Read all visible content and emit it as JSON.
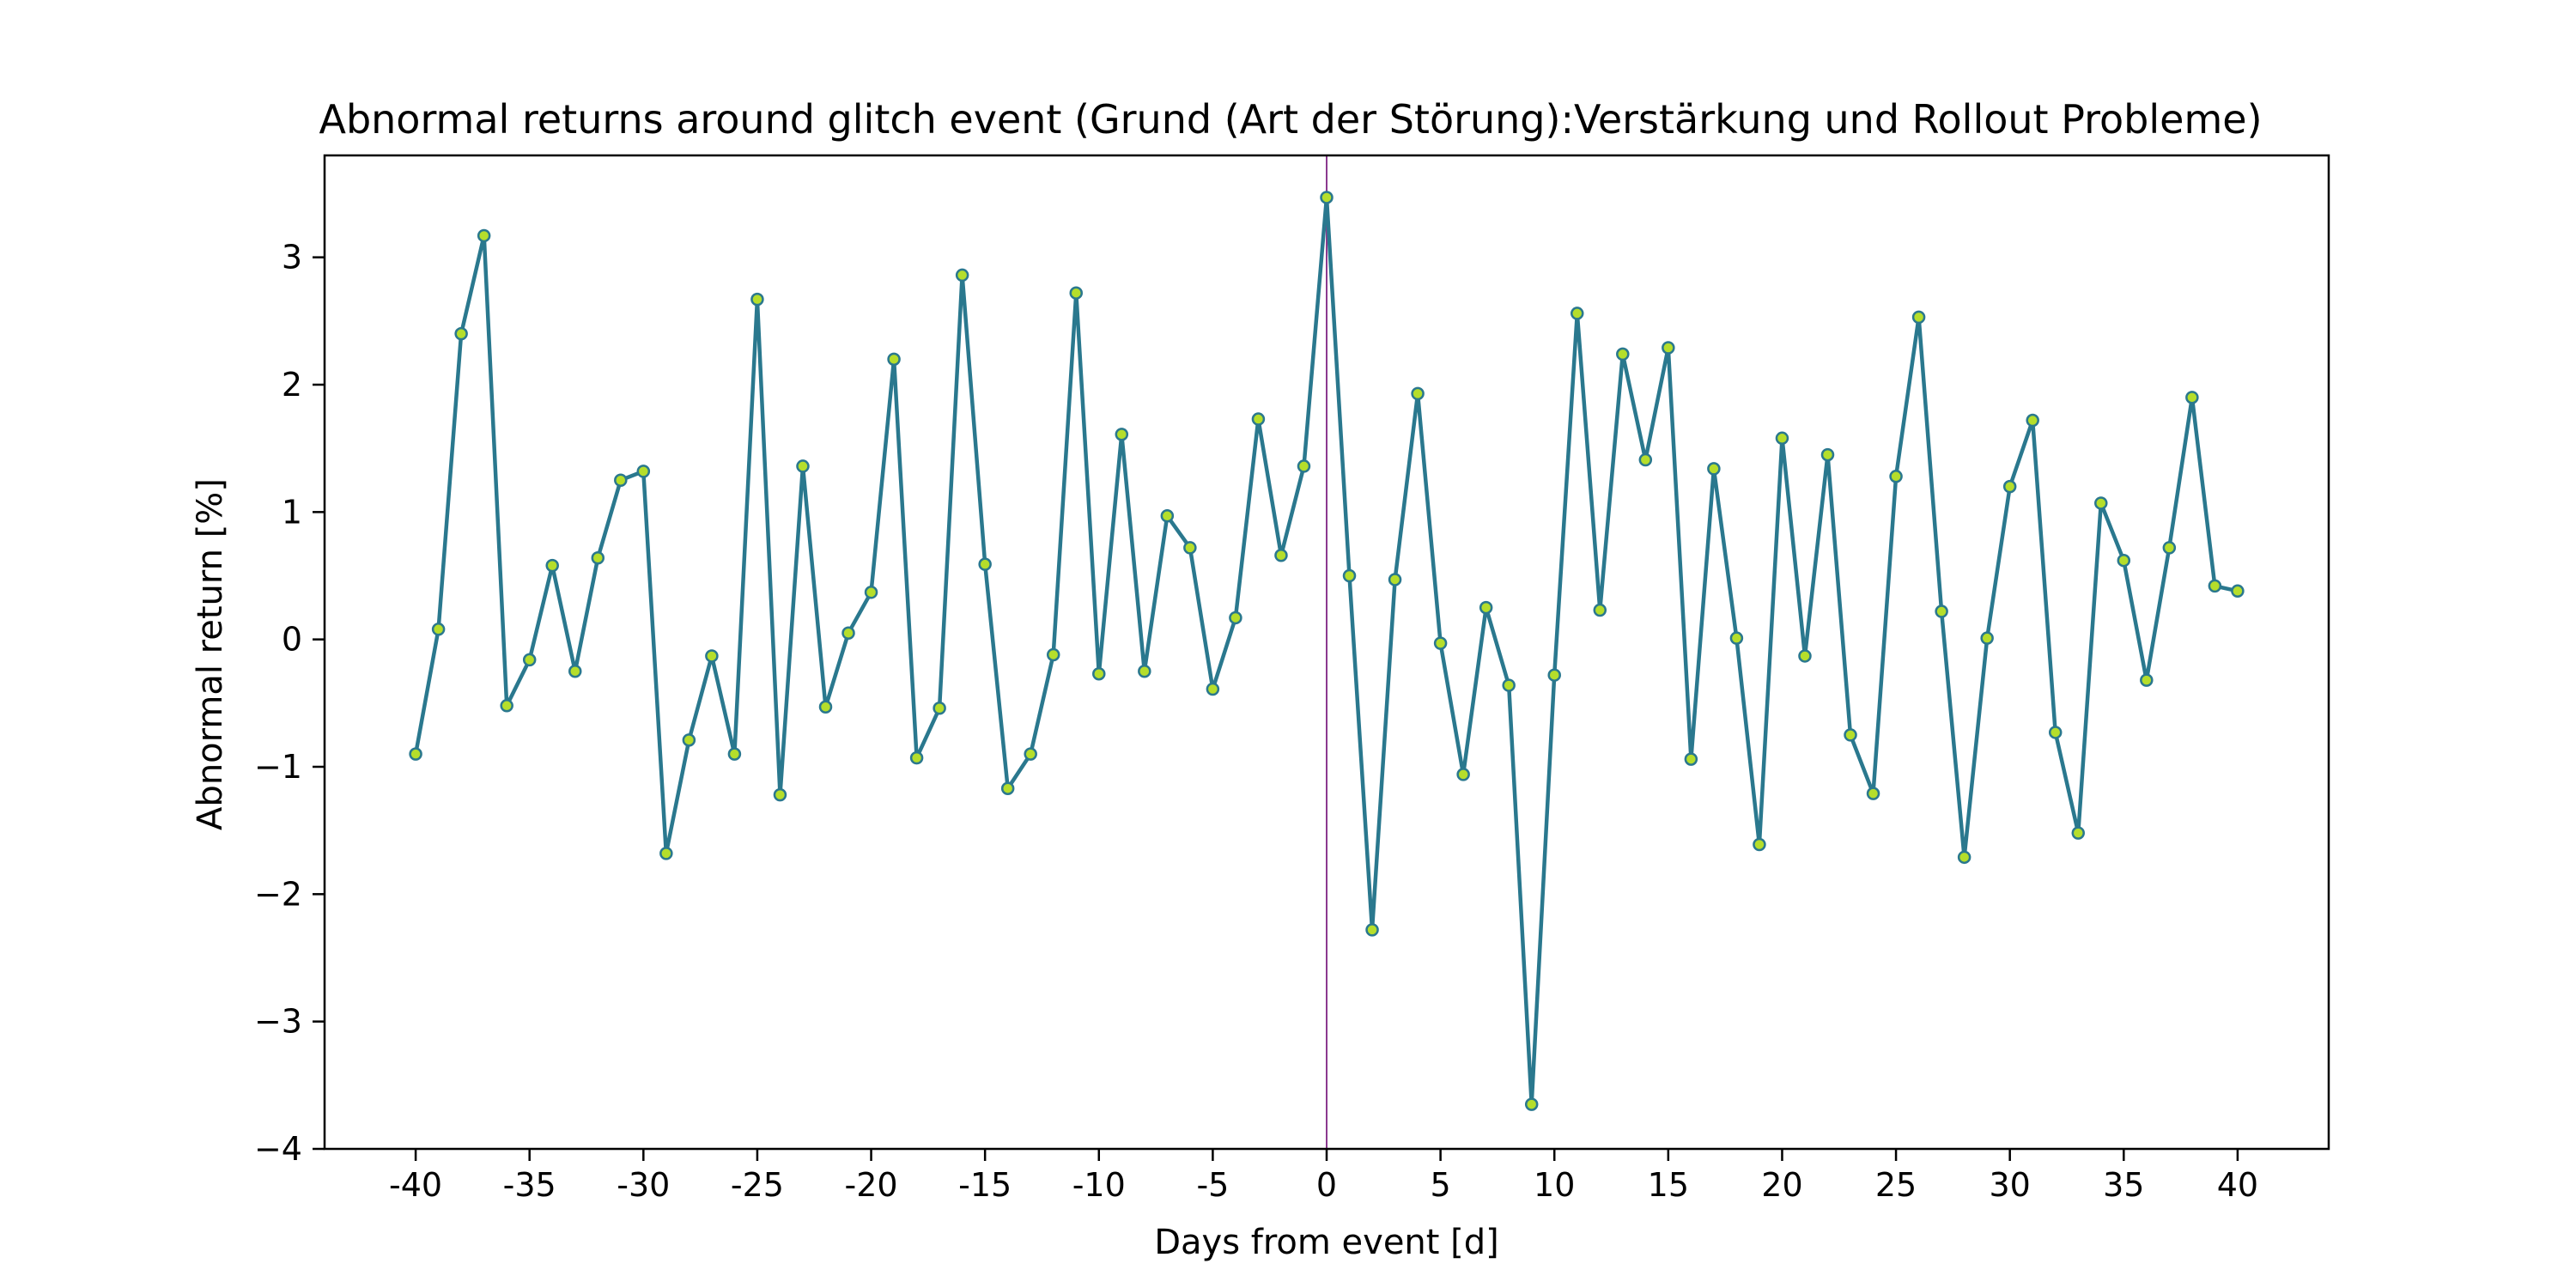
{
  "chart_data": {
    "type": "line",
    "title": "Abnormal returns around glitch event (Grund (Art der Störung):Verstärkung und Rollout Probleme)",
    "xlabel": "Days from event [d]",
    "ylabel": "Abnormal return [%]",
    "xlim": [
      -44,
      44
    ],
    "ylim": [
      -4,
      3.8
    ],
    "xticks": [
      -40,
      -35,
      -30,
      -25,
      -20,
      -15,
      -10,
      -5,
      0,
      5,
      10,
      15,
      20,
      25,
      30,
      35,
      40
    ],
    "xtick_labels": [
      "-40",
      "-35",
      "-30",
      "-25",
      "-20",
      "-15",
      "-10",
      "-5",
      "0",
      "5",
      "10",
      "15",
      "20",
      "25",
      "30",
      "35",
      "40"
    ],
    "yticks": [
      -4,
      -3,
      -2,
      -1,
      0,
      1,
      2,
      3
    ],
    "ytick_labels": [
      "−4",
      "−3",
      "−2",
      "−1",
      "0",
      "1",
      "2",
      "3"
    ],
    "event_line_x": 0,
    "grid": false,
    "colors": {
      "line": "#2a788e",
      "marker_fill": "#b5de2b",
      "marker_edge": "#2a788e",
      "event_line": "#8b3a8f"
    },
    "series": [
      {
        "x": [
          -40,
          -39,
          -38,
          -37,
          -36,
          -35,
          -34,
          -33,
          -32,
          -31,
          -30,
          -29,
          -28,
          -27,
          -26,
          -25,
          -24,
          -23,
          -22,
          -21,
          -20,
          -19,
          -18,
          -17,
          -16,
          -15,
          -14,
          -13,
          -12,
          -11,
          -10,
          -9,
          -8,
          -7,
          -6,
          -5,
          -4,
          -3,
          -2,
          -1,
          0,
          1,
          2,
          3,
          4,
          5,
          6,
          7,
          8,
          9,
          10,
          11,
          12,
          13,
          14,
          15,
          16,
          17,
          18,
          19,
          20,
          21,
          22,
          23,
          24,
          25,
          26,
          27,
          28,
          29,
          30,
          31,
          32,
          33,
          34,
          35,
          36,
          37,
          38,
          39,
          40
        ],
        "values": [
          -0.9,
          0.08,
          2.4,
          3.17,
          -0.52,
          -0.16,
          0.58,
          -0.25,
          0.64,
          1.25,
          1.32,
          -1.68,
          -0.79,
          -0.13,
          -0.9,
          2.67,
          -1.22,
          1.36,
          -0.53,
          0.05,
          0.37,
          2.2,
          -0.93,
          -0.54,
          2.86,
          0.59,
          -1.17,
          -0.9,
          -0.12,
          2.72,
          -0.27,
          1.61,
          -0.25,
          0.97,
          0.72,
          -0.39,
          0.17,
          1.73,
          0.66,
          1.36,
          3.47,
          0.5,
          -2.28,
          0.47,
          1.93,
          -0.03,
          -1.06,
          0.25,
          -0.36,
          -3.65,
          -0.28,
          2.56,
          0.23,
          2.24,
          1.41,
          2.29,
          -0.94,
          1.34,
          0.01,
          -1.61,
          1.58,
          -0.13,
          1.45,
          -0.75,
          -1.21,
          1.28,
          2.53,
          0.22,
          -1.71,
          0.01,
          1.2,
          1.72,
          -0.73,
          -1.52,
          1.07,
          0.62,
          -0.32,
          0.72,
          1.9,
          0.42,
          0.38
        ]
      }
    ]
  }
}
